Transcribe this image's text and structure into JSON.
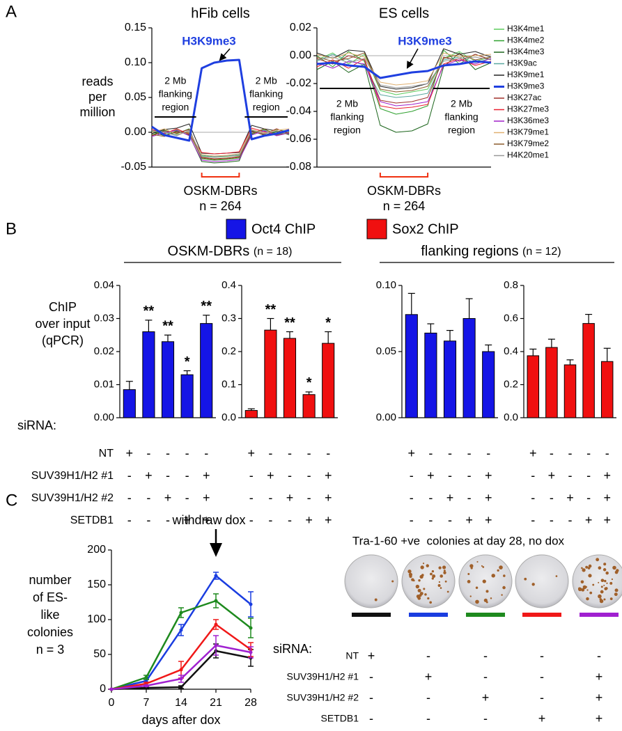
{
  "panel_labels": [
    "A",
    "B",
    "C"
  ],
  "groups_B": [
    {
      "label": "OSKM-DBRs",
      "n": "(n = 18)"
    },
    {
      "label": "flanking regions",
      "n": "(n = 12)"
    }
  ],
  "sirna": {
    "label": "siRNA:",
    "rows": [
      {
        "name": "NT",
        "marks": [
          "+",
          "-",
          "-",
          "-",
          "-"
        ]
      },
      {
        "name": "SUV39H1/H2 #1",
        "marks": [
          "-",
          "+",
          "-",
          "-",
          "+"
        ]
      },
      {
        "name": "SUV39H1/H2 #2",
        "marks": [
          "-",
          "-",
          "+",
          "-",
          "+"
        ]
      },
      {
        "name": "SETDB1",
        "marks": [
          "-",
          "-",
          "-",
          "+",
          "+"
        ]
      }
    ]
  },
  "plates_title": "Tra-1-60 +ve  colonies at day 28, no dox",
  "chart_data": [
    {
      "type": "line",
      "title": "hFib cells",
      "ylabel": [
        "reads",
        "per",
        "million"
      ],
      "highlight_label": "H3K9me3",
      "flank_label": [
        "2 Mb",
        "flanking",
        "region"
      ],
      "region_label": "OSKM-DBRs",
      "region_n": "n = 264",
      "zero_line": true,
      "categories": [
        null,
        null,
        null,
        null,
        null,
        null,
        null,
        null,
        null,
        null,
        null,
        null
      ],
      "ylim": [
        -0.05,
        0.15
      ],
      "yticks": [
        -0.05,
        {
          "value": 0,
          "label": "0.00"
        },
        0.05,
        {
          "value": 0.1,
          "label": "0.10"
        },
        0.15
      ],
      "series": [
        {
          "color": "#5ccc5c",
          "values": [
            0.002,
            -0.003,
            0.004,
            -0.002,
            -0.034,
            -0.036,
            -0.035,
            -0.033,
            0.003,
            -0.002,
            0.004,
            0.001
          ]
        },
        {
          "color": "#2ea02e",
          "values": [
            -0.004,
            0.003,
            -0.002,
            0.005,
            -0.038,
            -0.04,
            -0.039,
            -0.037,
            -0.003,
            0.004,
            -0.002,
            0.003
          ]
        },
        {
          "color": "#1a641a",
          "values": [
            0.001,
            -0.005,
            0.002,
            -0.004,
            -0.042,
            -0.044,
            -0.043,
            -0.041,
            0.002,
            -0.004,
            0.001,
            -0.003
          ]
        },
        {
          "color": "#5aa8a0",
          "values": [
            0.003,
            0.001,
            -0.004,
            0.002,
            -0.033,
            -0.035,
            -0.034,
            -0.032,
            -0.001,
            0.003,
            -0.004,
            0.002
          ]
        },
        {
          "color": "#222222",
          "values": [
            -0.002,
            0.004,
            0.006,
            0.012,
            -0.03,
            -0.031,
            -0.03,
            -0.029,
            0.01,
            0.005,
            0.002,
            -0.001
          ]
        },
        {
          "color": "#1f3fe0",
          "width": 3,
          "values": [
            0.008,
            -0.004,
            -0.008,
            -0.012,
            0.092,
            0.1,
            0.103,
            0.104,
            -0.01,
            -0.005,
            -0.002,
            0.003
          ]
        },
        {
          "color": "#a0302a",
          "values": [
            -0.005,
            0.002,
            -0.001,
            0.004,
            -0.036,
            -0.038,
            -0.037,
            -0.035,
            0.001,
            -0.003,
            0.005,
            -0.002
          ]
        },
        {
          "color": "#ea2030",
          "values": [
            0.004,
            -0.002,
            0.005,
            -0.003,
            -0.029,
            -0.031,
            -0.03,
            -0.028,
            0.006,
            0.001,
            -0.003,
            0.004
          ]
        },
        {
          "color": "#a020c8",
          "values": [
            -0.006,
            -0.001,
            0.003,
            -0.005,
            -0.04,
            -0.042,
            -0.041,
            -0.039,
            -0.004,
            0.002,
            -0.005,
            -0.001
          ]
        },
        {
          "color": "#e0b070",
          "values": [
            0.0,
            0.005,
            -0.003,
            0.001,
            -0.032,
            -0.034,
            -0.033,
            -0.031,
            0.004,
            -0.001,
            0.003,
            0.005
          ]
        },
        {
          "color": "#8b5a2b",
          "values": [
            -0.003,
            -0.006,
            0.001,
            -0.001,
            -0.037,
            -0.039,
            -0.038,
            -0.036,
            -0.002,
            0.005,
            -0.004,
            0.0
          ]
        },
        {
          "color": "#999999",
          "values": [
            0.002,
            0.0,
            -0.005,
            0.003,
            -0.035,
            -0.036,
            -0.034,
            -0.034,
            0.003,
            -0.002,
            0.002,
            -0.004
          ]
        }
      ]
    },
    {
      "type": "line",
      "title": "ES cells",
      "legend": "right",
      "highlight_label": "H3K9me3",
      "flank_label": [
        "2 Mb",
        "flanking",
        "region"
      ],
      "region_label": "OSKM-DBRs",
      "region_n": "n = 264",
      "zero_line": true,
      "categories": [
        null,
        null,
        null,
        null,
        null,
        null,
        null,
        null,
        null,
        null,
        null,
        null
      ],
      "ylim": [
        -0.08,
        0.02
      ],
      "yticks": [
        -0.08,
        -0.06,
        -0.04,
        -0.02,
        {
          "value": 0,
          "label": "0.00"
        },
        0.02
      ],
      "series": [
        {
          "name": "H3K4me1",
          "color": "#5ccc5c",
          "values": [
            -0.003,
            0.002,
            -0.006,
            0.001,
            -0.025,
            -0.028,
            -0.026,
            -0.024,
            -0.002,
            0.003,
            -0.004,
            -0.001
          ]
        },
        {
          "name": "H3K4me2",
          "color": "#2ea02e",
          "values": [
            0.0,
            -0.008,
            0.003,
            -0.004,
            -0.038,
            -0.042,
            -0.04,
            -0.036,
            0.004,
            -0.006,
            0.001,
            -0.003
          ]
        },
        {
          "name": "H3K4me3",
          "color": "#1a641a",
          "values": [
            -0.01,
            -0.004,
            -0.012,
            -0.006,
            -0.05,
            -0.055,
            -0.054,
            -0.049,
            -0.008,
            0.002,
            -0.01,
            -0.005
          ]
        },
        {
          "name": "H3K9ac",
          "color": "#5aa8a0",
          "values": [
            -0.004,
            0.001,
            -0.003,
            -0.007,
            -0.028,
            -0.03,
            -0.029,
            -0.027,
            -0.003,
            -0.001,
            -0.005,
            -0.002
          ]
        },
        {
          "name": "H3K9me1",
          "color": "#222222",
          "values": [
            0.002,
            -0.002,
            0.004,
            0.003,
            -0.022,
            -0.024,
            -0.023,
            -0.02,
            0.005,
            0.001,
            0.003,
            -0.001
          ]
        },
        {
          "name": "H3K9me3",
          "color": "#1f3fe0",
          "width": 3,
          "values": [
            -0.006,
            -0.005,
            -0.007,
            -0.008,
            -0.016,
            -0.014,
            -0.012,
            -0.011,
            -0.007,
            -0.006,
            -0.004,
            -0.005
          ]
        },
        {
          "name": "H3K27ac",
          "color": "#a0302a",
          "values": [
            -0.002,
            -0.006,
            0.0,
            -0.003,
            -0.032,
            -0.034,
            -0.033,
            -0.03,
            -0.001,
            -0.004,
            0.001,
            -0.003
          ]
        },
        {
          "name": "H3K27me3",
          "color": "#ea2030",
          "values": [
            -0.008,
            -0.003,
            -0.009,
            -0.002,
            -0.036,
            -0.038,
            -0.037,
            -0.035,
            -0.006,
            -0.002,
            -0.007,
            -0.004
          ]
        },
        {
          "name": "H3K36me3",
          "color": "#a020c8",
          "values": [
            -0.005,
            -0.009,
            -0.004,
            -0.006,
            -0.033,
            -0.036,
            -0.035,
            -0.033,
            -0.007,
            -0.003,
            -0.006,
            -0.002
          ]
        },
        {
          "name": "H3K79me1",
          "color": "#e0b070",
          "values": [
            0.001,
            -0.002,
            0.002,
            -0.001,
            -0.019,
            -0.021,
            -0.02,
            -0.018,
            0.002,
            -0.001,
            0.0,
            0.001
          ]
        },
        {
          "name": "H3K79me2",
          "color": "#8b5a2b",
          "values": [
            -0.001,
            -0.004,
            -0.002,
            0.002,
            -0.024,
            -0.026,
            -0.025,
            -0.022,
            -0.002,
            0.001,
            -0.003,
            -0.001
          ]
        },
        {
          "name": "H4K20me1",
          "color": "#999999",
          "values": [
            -0.003,
            -0.001,
            -0.005,
            -0.002,
            -0.021,
            -0.023,
            -0.022,
            -0.02,
            -0.004,
            -0.002,
            -0.001,
            -0.003
          ]
        }
      ]
    },
    {
      "type": "bar",
      "ylabel": [
        "ChIP",
        "over input",
        "(qPCR)"
      ],
      "categories": [
        null,
        null,
        null,
        null,
        null
      ],
      "ylim": [
        0,
        0.04
      ],
      "yticks": [
        {
          "value": 0,
          "label": "0.00"
        },
        0.01,
        0.02,
        0.03,
        0.04
      ],
      "series": [
        {
          "name": "Oct4 ChIP",
          "color": "#1515e6",
          "values": [
            0.0085,
            0.026,
            0.023,
            0.013,
            0.0285
          ],
          "errors": [
            0.0025,
            0.0035,
            0.002,
            0.0012,
            0.0025
          ]
        }
      ],
      "annotations": [
        null,
        "**",
        "**",
        "*",
        "**"
      ]
    },
    {
      "type": "bar",
      "categories": [
        null,
        null,
        null,
        null,
        null
      ],
      "ylim": [
        0,
        0.4
      ],
      "yticks": [
        {
          "value": 0,
          "label": "0.0"
        },
        0.1,
        0.2,
        0.3,
        0.4
      ],
      "series": [
        {
          "name": "Sox2 ChIP",
          "color": "#f01010",
          "values": [
            0.022,
            0.265,
            0.24,
            0.07,
            0.225
          ],
          "errors": [
            0.005,
            0.035,
            0.02,
            0.008,
            0.035
          ]
        }
      ],
      "annotations": [
        null,
        "**",
        "**",
        "*",
        "*"
      ]
    },
    {
      "type": "bar",
      "categories": [
        null,
        null,
        null,
        null,
        null
      ],
      "ylim": [
        0,
        0.1
      ],
      "yticks": [
        {
          "value": 0,
          "label": "0.00"
        },
        0.05,
        {
          "value": 0.1,
          "label": "0.10"
        }
      ],
      "series": [
        {
          "color": "#1515e6",
          "values": [
            0.078,
            0.064,
            0.058,
            0.075,
            0.05
          ],
          "errors": [
            0.016,
            0.007,
            0.008,
            0.015,
            0.005
          ]
        }
      ]
    },
    {
      "type": "bar",
      "categories": [
        null,
        null,
        null,
        null,
        null
      ],
      "ylim": [
        0,
        0.8
      ],
      "yticks": [
        {
          "value": 0,
          "label": "0.0"
        },
        0.2,
        0.4,
        0.6,
        0.8
      ],
      "series": [
        {
          "color": "#f01010",
          "values": [
            0.375,
            0.425,
            0.32,
            0.57,
            0.34
          ],
          "errors": [
            0.04,
            0.05,
            0.03,
            0.055,
            0.08
          ]
        }
      ]
    },
    {
      "type": "line",
      "ylabel": [
        "number",
        "of ES-",
        "like",
        "colonies",
        "n = 3"
      ],
      "xlabel": "days after dox",
      "annotation": "withdraw dox",
      "x": [
        0,
        7,
        14,
        21,
        28
      ],
      "xlim": [
        0,
        28
      ],
      "xticks": [
        0,
        7,
        14,
        21,
        28
      ],
      "ylim": [
        0,
        200
      ],
      "yticks": [
        0,
        50,
        100,
        150,
        200
      ],
      "series": [
        {
          "color": "#111111",
          "width": 2.5,
          "values": [
            0,
            2,
            3,
            55,
            45
          ],
          "errors": [
            0,
            1,
            2,
            10,
            12
          ]
        },
        {
          "color": "#1a3de0",
          "width": 2.5,
          "values": [
            0,
            12,
            85,
            163,
            122
          ],
          "errors": [
            0,
            2,
            8,
            5,
            18
          ]
        },
        {
          "color": "#1e8a1e",
          "width": 2.5,
          "values": [
            0,
            17,
            110,
            127,
            88
          ],
          "errors": [
            0,
            3,
            7,
            10,
            14
          ]
        },
        {
          "color": "#f01818",
          "width": 2.5,
          "values": [
            0,
            8,
            28,
            93,
            57
          ],
          "errors": [
            0,
            2,
            12,
            7,
            10
          ]
        },
        {
          "color": "#a020d0",
          "width": 2.5,
          "values": [
            0,
            5,
            15,
            63,
            53
          ],
          "errors": [
            0,
            1,
            5,
            14,
            8
          ]
        }
      ]
    }
  ]
}
